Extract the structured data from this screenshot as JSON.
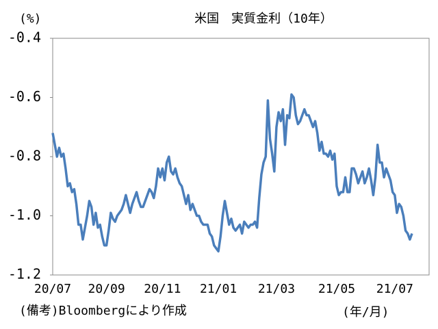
{
  "chart_data": {
    "type": "line",
    "title": "米国　実質金利（10年）",
    "y_unit": "(%)",
    "x_unit": "(年/月)",
    "note": "(備考)Bloombergにより作成",
    "categories": [
      "20/07",
      null,
      null,
      null,
      null,
      null,
      null,
      null,
      null,
      null,
      null,
      null,
      null,
      null,
      null,
      null,
      null,
      null,
      null,
      null,
      null,
      null,
      null,
      null,
      null,
      "20/09",
      null,
      null,
      null,
      null,
      null,
      null,
      null,
      null,
      null,
      null,
      null,
      null,
      null,
      null,
      null,
      null,
      null,
      null,
      null,
      null,
      null,
      null,
      null,
      null,
      null,
      "20/11",
      null,
      null,
      null,
      null,
      null,
      null,
      null,
      null,
      null,
      null,
      null,
      null,
      null,
      null,
      null,
      null,
      null,
      null,
      null,
      null,
      null,
      null,
      null,
      null,
      null,
      "21/01",
      null,
      null,
      null,
      null,
      null,
      null,
      null,
      null,
      null,
      null,
      null,
      null,
      null,
      null,
      null,
      null,
      null,
      null,
      null,
      null,
      null,
      null,
      null,
      null,
      null,
      null,
      "21/03",
      null,
      null,
      null,
      null,
      null,
      null,
      null,
      null,
      null,
      null,
      null,
      null,
      null,
      null,
      null,
      null,
      null,
      null,
      null,
      null,
      null,
      null,
      null,
      null,
      null,
      null,
      null,
      "21/05",
      null,
      null,
      null,
      null,
      null,
      null,
      null,
      null,
      null,
      null,
      null,
      null,
      null,
      null,
      null,
      null,
      null,
      null,
      null,
      null,
      null,
      null,
      null,
      null,
      null,
      null,
      "21/07",
      null,
      null,
      null,
      null,
      null,
      null,
      null,
      null
    ],
    "series": [
      {
        "color": "#4a7ebb",
        "values": [
          -0.72,
          -0.76,
          -0.8,
          -0.77,
          -0.8,
          -0.79,
          -0.84,
          -0.9,
          -0.89,
          -0.92,
          -0.91,
          -0.96,
          -1.03,
          -1.03,
          -1.08,
          -1.04,
          -1.0,
          -0.95,
          -0.97,
          -1.03,
          -0.99,
          -1.04,
          -1.03,
          -1.07,
          -1.1,
          -1.1,
          -1.05,
          -0.99,
          -1.01,
          -1.02,
          -1.0,
          -0.99,
          -0.98,
          -0.96,
          -0.93,
          -0.96,
          -0.99,
          -0.96,
          -0.94,
          -0.92,
          -0.95,
          -0.97,
          -0.97,
          -0.95,
          -0.93,
          -0.91,
          -0.92,
          -0.94,
          -0.9,
          -0.84,
          -0.87,
          -0.84,
          -0.88,
          -0.82,
          -0.8,
          -0.85,
          -0.86,
          -0.84,
          -0.87,
          -0.89,
          -0.9,
          -0.93,
          -0.96,
          -0.93,
          -0.98,
          -0.96,
          -0.98,
          -1.0,
          -1.0,
          -1.02,
          -1.03,
          -1.03,
          -1.03,
          -1.06,
          -1.07,
          -1.1,
          -1.11,
          -1.12,
          -1.07,
          -1.0,
          -0.95,
          -0.99,
          -1.03,
          -1.01,
          -1.04,
          -1.05,
          -1.04,
          -1.03,
          -1.06,
          -1.02,
          -1.03,
          -1.04,
          -1.03,
          -1.03,
          -1.02,
          -1.04,
          -0.94,
          -0.86,
          -0.82,
          -0.8,
          -0.61,
          -0.74,
          -0.79,
          -0.85,
          -0.7,
          -0.65,
          -0.68,
          -0.64,
          -0.76,
          -0.66,
          -0.67,
          -0.59,
          -0.6,
          -0.66,
          -0.69,
          -0.68,
          -0.66,
          -0.64,
          -0.66,
          -0.66,
          -0.68,
          -0.7,
          -0.68,
          -0.72,
          -0.78,
          -0.75,
          -0.79,
          -0.79,
          -0.8,
          -0.78,
          -0.81,
          -0.79,
          -0.9,
          -0.93,
          -0.92,
          -0.92,
          -0.87,
          -0.92,
          -0.92,
          -0.84,
          -0.84,
          -0.86,
          -0.89,
          -0.87,
          -0.85,
          -0.89,
          -0.87,
          -0.84,
          -0.88,
          -0.93,
          -0.87,
          -0.76,
          -0.82,
          -0.82,
          -0.87,
          -0.84,
          -0.86,
          -0.88,
          -0.92,
          -0.93,
          -0.99,
          -0.96,
          -0.97,
          -1.0,
          -1.05,
          -1.06,
          -1.08,
          -1.06
        ]
      }
    ],
    "ylim": [
      -1.2,
      -0.4
    ],
    "yticks": [
      -1.2,
      {
        "value": -1,
        "label": "-1.0"
      },
      -0.8,
      -0.6,
      -0.4
    ]
  }
}
